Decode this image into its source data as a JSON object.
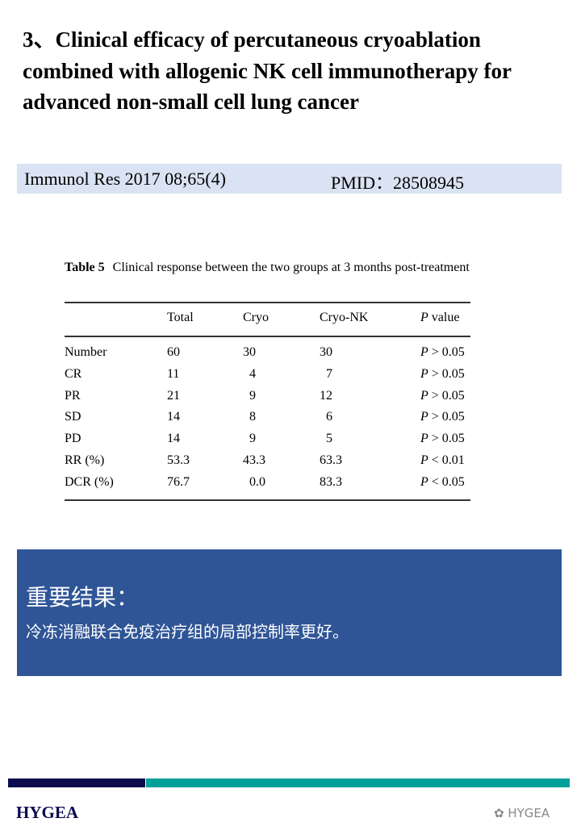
{
  "title": "3、Clinical efficacy of percutaneous cryoablation combined with allogenic NK cell immunotherapy for advanced non-small cell lung cancer",
  "citation": {
    "journal": "Immunol Res 2017 08;65(4)",
    "pmid": "PMID：28508945"
  },
  "table": {
    "label": "Table 5",
    "caption": "Clinical response between the two groups at 3 months post-treatment",
    "headers": [
      "",
      "Total",
      "Cryo",
      "Cryo-NK",
      "P value"
    ],
    "rows": [
      [
        "Number",
        "60",
        "30",
        "30",
        "P > 0.05"
      ],
      [
        "CR",
        "11",
        "4",
        "7",
        "P > 0.05"
      ],
      [
        "PR",
        "21",
        "9",
        "12",
        "P > 0.05"
      ],
      [
        "SD",
        "14",
        "8",
        "6",
        "P > 0.05"
      ],
      [
        "PD",
        "14",
        "9",
        "5",
        "P > 0.05"
      ],
      [
        "RR (%)",
        "53.3",
        "43.3",
        "63.3",
        "P < 0.01"
      ],
      [
        "DCR (%)",
        "76.7",
        "0.0",
        "83.3",
        "P < 0.05"
      ]
    ]
  },
  "result": {
    "heading": "重要结果：",
    "text": "冷冻消融联合免疫治疗组的局部控制率更好。"
  },
  "footer": {
    "logo": "HYGEA",
    "watermark": "HYGEA"
  },
  "colors": {
    "band": "#dae3f3",
    "box": "#2f5597",
    "navy": "#0b0b4f",
    "teal": "#00a099"
  }
}
